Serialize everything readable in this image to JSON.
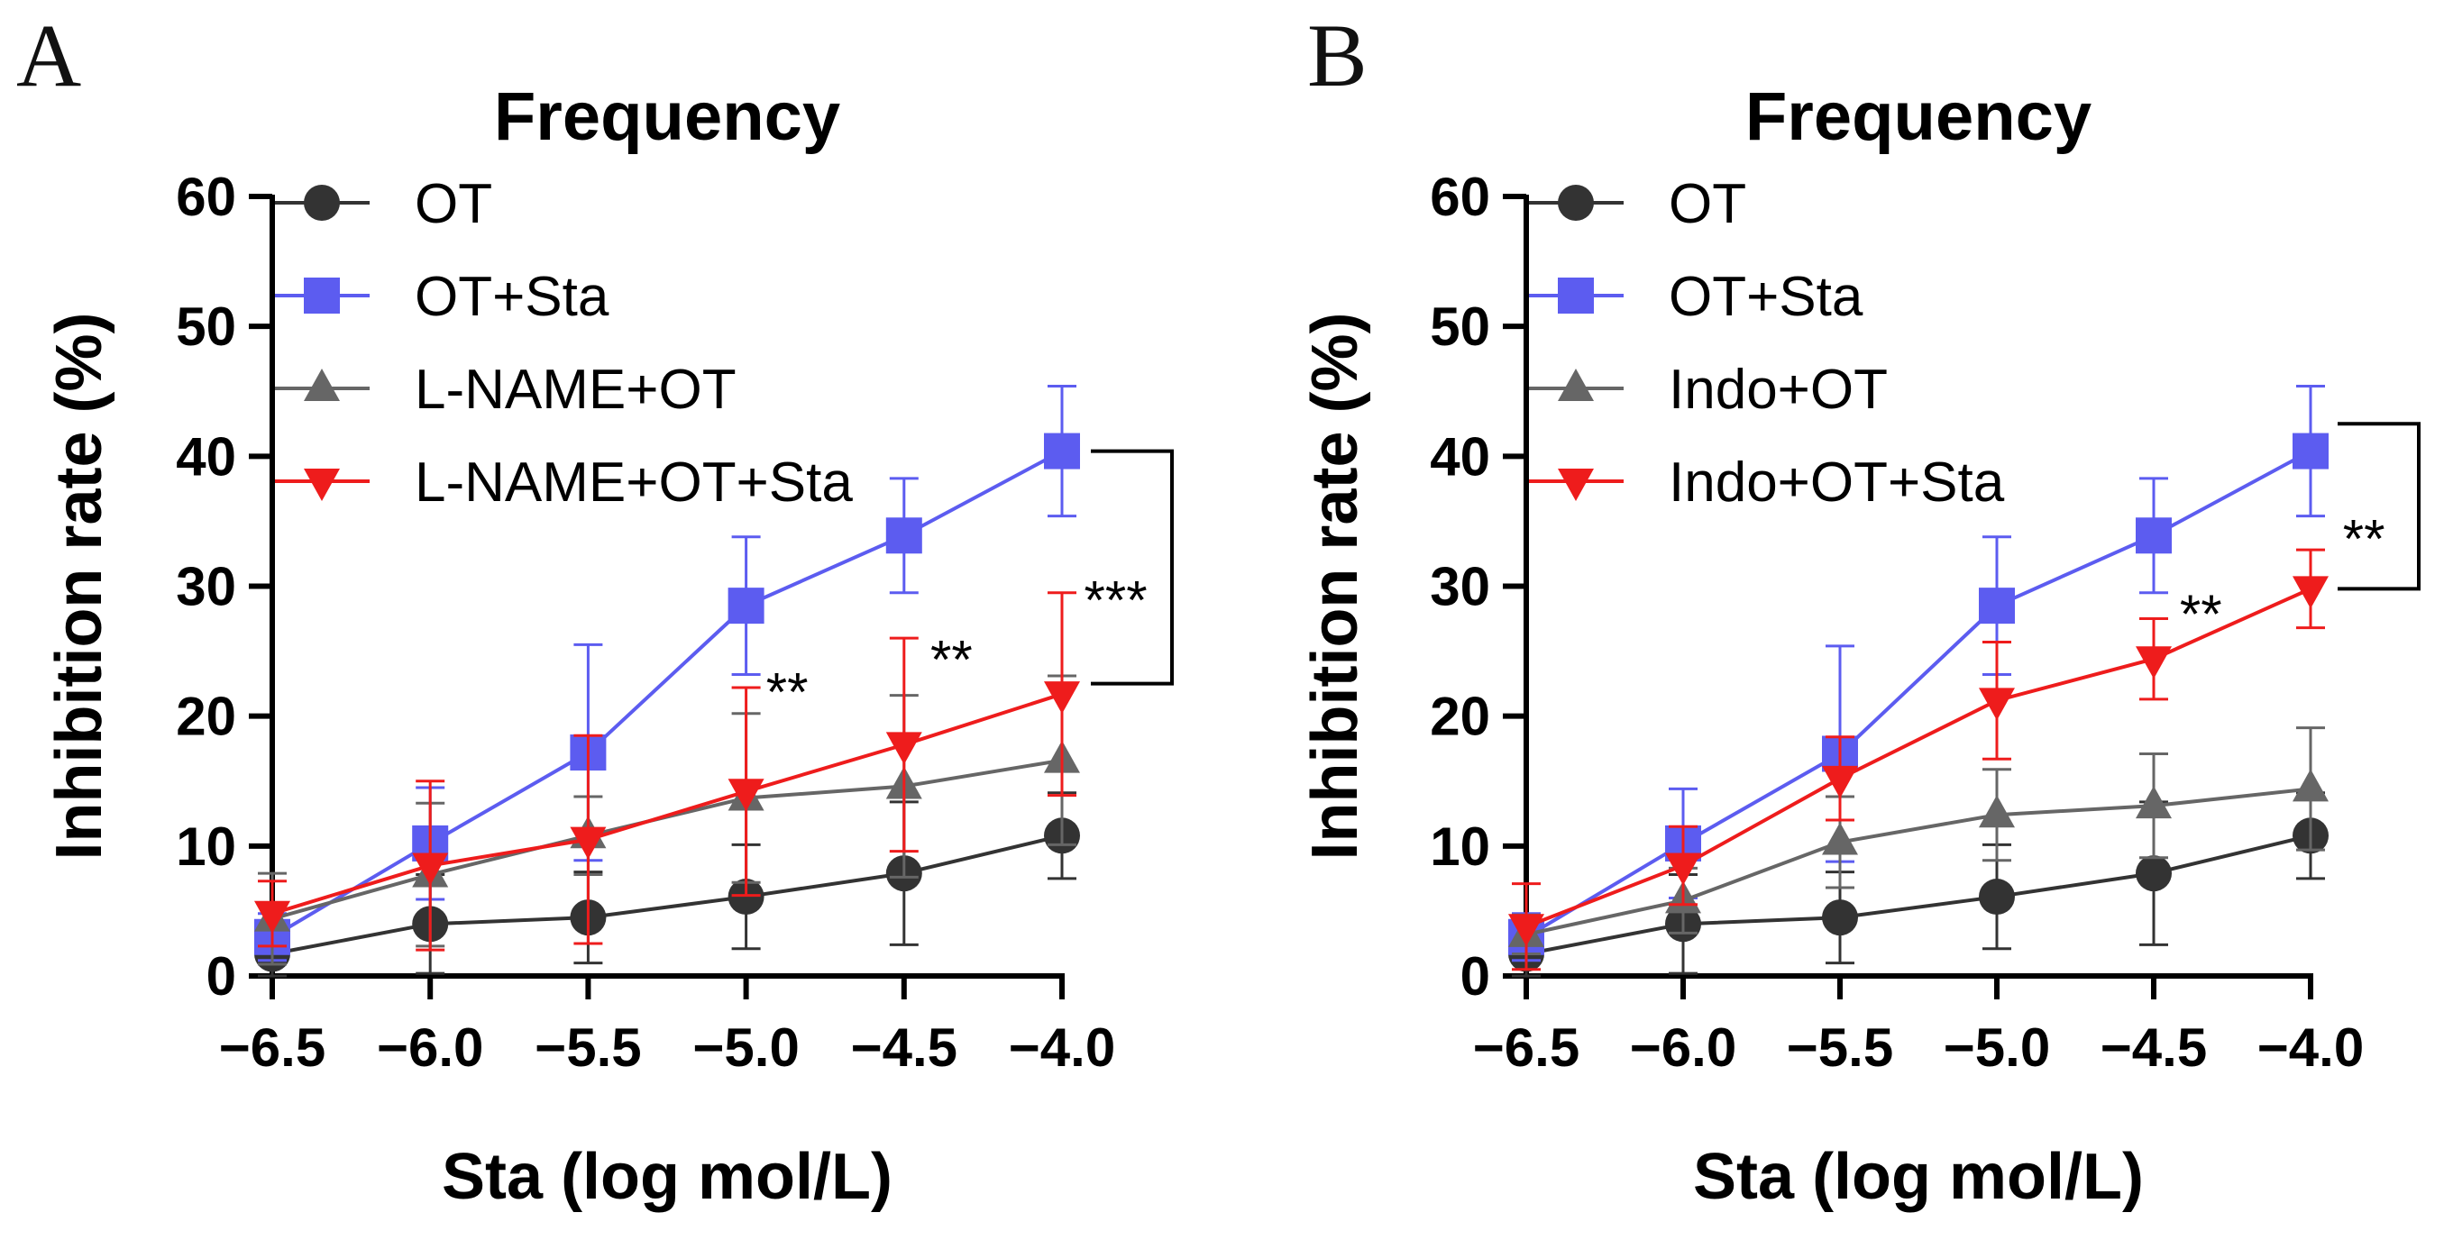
{
  "chart_data": [
    {
      "panel": "A",
      "type": "line",
      "title": "Frequency",
      "xlabel": "Sta (log mol/L)",
      "ylabel": "Inhibition rate (%)",
      "xlim": [
        -6.5,
        -4.0
      ],
      "ylim": [
        0,
        60
      ],
      "x": [
        -6.5,
        -6.0,
        -5.5,
        -5.0,
        -4.5,
        -4.0
      ],
      "xticks": [
        "−6.5",
        "−6.0",
        "−5.5",
        "−5.0",
        "−4.5",
        "−4.0"
      ],
      "yticks": [
        "0",
        "10",
        "20",
        "30",
        "40",
        "50",
        "60"
      ],
      "series": [
        {
          "name": "OT",
          "color": "#333333",
          "marker": "circle",
          "values": [
            1.7,
            4.0,
            4.5,
            6.1,
            7.9,
            10.8
          ],
          "errors": [
            2.5,
            3.8,
            3.5,
            4.0,
            5.5,
            3.3
          ]
        },
        {
          "name": "OT+Sta",
          "color": "#5c5cf0",
          "marker": "square",
          "values": [
            3.0,
            10.2,
            17.2,
            28.5,
            33.9,
            40.4
          ],
          "errors": [
            1.8,
            4.3,
            8.3,
            5.3,
            4.4,
            5.0
          ]
        },
        {
          "name": "L-NAME+OT",
          "color": "#666666",
          "marker": "triangle-up",
          "values": [
            4.4,
            7.8,
            10.8,
            13.7,
            14.6,
            16.6
          ],
          "errors": [
            3.5,
            5.5,
            3.0,
            6.5,
            7.0,
            6.5
          ]
        },
        {
          "name": "L-NAME+OT+Sta",
          "color": "#ee1c1c",
          "marker": "triangle-down",
          "values": [
            4.8,
            8.5,
            10.5,
            14.2,
            17.8,
            21.7
          ],
          "errors": [
            2.5,
            6.5,
            8.0,
            8.0,
            8.2,
            7.8
          ]
        }
      ],
      "annotations": [
        {
          "text": "**",
          "x": -4.87,
          "y": 22.5
        },
        {
          "text": "**",
          "x": -4.35,
          "y": 25.0
        },
        {
          "text": "***",
          "x": -3.83,
          "y": 29.6
        }
      ],
      "bracket": {
        "y_top": 40.4,
        "y_bottom": 22.5
      }
    },
    {
      "panel": "B",
      "type": "line",
      "title": "Frequency",
      "xlabel": "Sta (log mol/L)",
      "ylabel": "Inhibition rate (%)",
      "xlim": [
        -6.5,
        -4.0
      ],
      "ylim": [
        0,
        60
      ],
      "x": [
        -6.5,
        -6.0,
        -5.5,
        -5.0,
        -4.5,
        -4.0
      ],
      "xticks": [
        "−6.5",
        "−6.0",
        "−5.5",
        "−5.0",
        "−4.5",
        "−4.0"
      ],
      "yticks": [
        "0",
        "10",
        "20",
        "30",
        "40",
        "50",
        "60"
      ],
      "series": [
        {
          "name": "OT",
          "color": "#333333",
          "marker": "circle",
          "values": [
            1.7,
            4.0,
            4.5,
            6.1,
            7.9,
            10.8
          ],
          "errors": [
            2.5,
            3.8,
            3.5,
            4.0,
            5.5,
            3.3
          ]
        },
        {
          "name": "OT+Sta",
          "color": "#5c5cf0",
          "marker": "square",
          "values": [
            3.0,
            10.2,
            17.1,
            28.5,
            33.9,
            40.4
          ],
          "errors": [
            1.8,
            4.2,
            8.3,
            5.3,
            4.4,
            5.0
          ]
        },
        {
          "name": "Indo+OT",
          "color": "#666666",
          "marker": "triangle-up",
          "values": [
            3.2,
            5.8,
            10.3,
            12.4,
            13.1,
            14.4
          ],
          "errors": [
            1.5,
            2.5,
            3.5,
            3.5,
            4.0,
            4.7
          ]
        },
        {
          "name": "Indo+OT+Sta",
          "color": "#ee1c1c",
          "marker": "triangle-down",
          "values": [
            3.8,
            8.5,
            15.2,
            21.2,
            24.4,
            29.8
          ],
          "errors": [
            3.3,
            3.0,
            3.2,
            4.5,
            3.1,
            3.0
          ]
        }
      ],
      "annotations": [
        {
          "text": "**",
          "x": -4.35,
          "y": 28.5
        },
        {
          "text": "**",
          "x": -3.83,
          "y": 34.3
        }
      ],
      "bracket": {
        "y_top": 42.5,
        "y_bottom": 29.8
      }
    }
  ]
}
